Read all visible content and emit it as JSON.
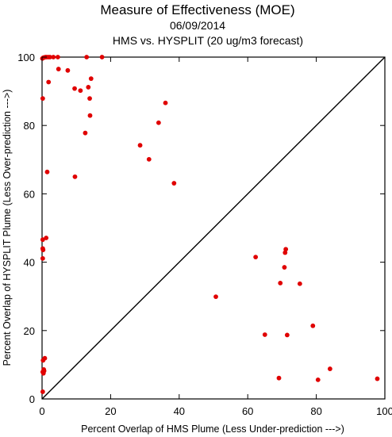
{
  "chart_data": {
    "type": "scatter",
    "title": "Measure of Effectiveness (MOE)",
    "date": "06/09/2014",
    "subtitle": "HMS vs. HYSPLIT  (20 ug/m3 forecast)",
    "xlabel": "Percent Overlap of HMS Plume (Less Under-prediction --->)",
    "ylabel": "Percent Overlap of HYSPLIT Plume (Less Over-prediction --->)",
    "xlim": [
      0,
      100
    ],
    "ylim": [
      0,
      100
    ],
    "xticks": [
      0,
      20,
      40,
      60,
      80,
      100
    ],
    "yticks": [
      0,
      20,
      40,
      60,
      80,
      100
    ],
    "grid": false,
    "point_color": "#e00000",
    "reference_line": "y = x",
    "points": [
      [
        0.1,
        99.6
      ],
      [
        0.3,
        99.8
      ],
      [
        0.6,
        99.9
      ],
      [
        1.0,
        100
      ],
      [
        1.3,
        100
      ],
      [
        1.8,
        100
      ],
      [
        2.3,
        100
      ],
      [
        3.3,
        100
      ],
      [
        4.6,
        100
      ],
      [
        13.0,
        100
      ],
      [
        17.5,
        100
      ],
      [
        0.2,
        87.9
      ],
      [
        1.9,
        92.7
      ],
      [
        4.8,
        96.5
      ],
      [
        7.5,
        96.1
      ],
      [
        9.5,
        90.8
      ],
      [
        11.2,
        90.2
      ],
      [
        13.5,
        91.2
      ],
      [
        14.3,
        93.7
      ],
      [
        13.9,
        87.9
      ],
      [
        14.0,
        82.9
      ],
      [
        36.0,
        86.6
      ],
      [
        34.0,
        80.8
      ],
      [
        12.6,
        77.8
      ],
      [
        28.6,
        74.2
      ],
      [
        31.2,
        70.1
      ],
      [
        38.5,
        63.1
      ],
      [
        1.5,
        66.4
      ],
      [
        9.6,
        65.0
      ],
      [
        0.2,
        46.6
      ],
      [
        1.2,
        47.1
      ],
      [
        0.2,
        44.0
      ],
      [
        0.3,
        43.6
      ],
      [
        0.2,
        41.1
      ],
      [
        0.8,
        11.9
      ],
      [
        0.3,
        11.3
      ],
      [
        0.5,
        8.6
      ],
      [
        0.6,
        8.2
      ],
      [
        0.2,
        7.9
      ],
      [
        0.4,
        7.5
      ],
      [
        0.2,
        2.1
      ],
      [
        62.3,
        41.5
      ],
      [
        71.1,
        43.8
      ],
      [
        70.9,
        42.8
      ],
      [
        70.7,
        38.5
      ],
      [
        69.5,
        33.9
      ],
      [
        75.2,
        33.7
      ],
      [
        50.7,
        29.9
      ],
      [
        79.0,
        21.4
      ],
      [
        65.0,
        18.8
      ],
      [
        71.5,
        18.7
      ],
      [
        69.1,
        6.1
      ],
      [
        80.5,
        5.6
      ],
      [
        84.0,
        8.8
      ],
      [
        97.8,
        5.9
      ]
    ]
  }
}
